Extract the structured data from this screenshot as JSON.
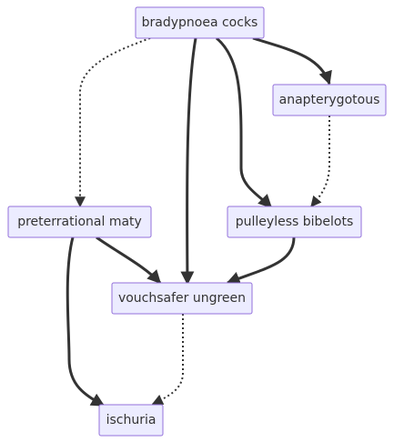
{
  "diagram": {
    "nodes": [
      {
        "id": "bradypnoea",
        "label": "bradypnoea cocks"
      },
      {
        "id": "anapterygotous",
        "label": "anapterygotous"
      },
      {
        "id": "preterrational",
        "label": "preterrational maty"
      },
      {
        "id": "pulleyless",
        "label": "pulleyless bibelots"
      },
      {
        "id": "vouchsafer",
        "label": "vouchsafer ungreen"
      },
      {
        "id": "ischuria",
        "label": "ischuria"
      }
    ],
    "edges": [
      {
        "from": "bradypnoea",
        "to": "preterrational",
        "style": "dotted"
      },
      {
        "from": "bradypnoea",
        "to": "vouchsafer",
        "style": "solid"
      },
      {
        "from": "bradypnoea",
        "to": "pulleyless",
        "style": "solid"
      },
      {
        "from": "bradypnoea",
        "to": "anapterygotous",
        "style": "solid"
      },
      {
        "from": "anapterygotous",
        "to": "pulleyless",
        "style": "dotted"
      },
      {
        "from": "preterrational",
        "to": "vouchsafer",
        "style": "solid"
      },
      {
        "from": "preterrational",
        "to": "ischuria",
        "style": "solid"
      },
      {
        "from": "pulleyless",
        "to": "vouchsafer",
        "style": "solid"
      },
      {
        "from": "vouchsafer",
        "to": "ischuria",
        "style": "dotted"
      }
    ]
  }
}
